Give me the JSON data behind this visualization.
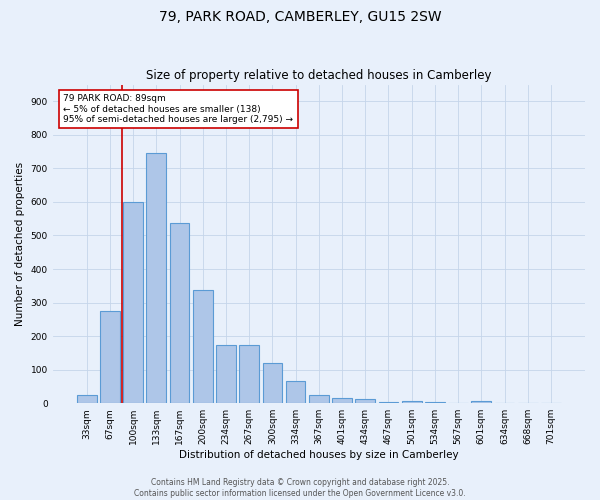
{
  "title": "79, PARK ROAD, CAMBERLEY, GU15 2SW",
  "subtitle": "Size of property relative to detached houses in Camberley",
  "xlabel": "Distribution of detached houses by size in Camberley",
  "ylabel": "Number of detached properties",
  "categories": [
    "33sqm",
    "67sqm",
    "100sqm",
    "133sqm",
    "167sqm",
    "200sqm",
    "234sqm",
    "267sqm",
    "300sqm",
    "334sqm",
    "367sqm",
    "401sqm",
    "434sqm",
    "467sqm",
    "501sqm",
    "534sqm",
    "567sqm",
    "601sqm",
    "634sqm",
    "668sqm",
    "701sqm"
  ],
  "values": [
    25,
    275,
    600,
    745,
    538,
    338,
    175,
    175,
    120,
    65,
    25,
    15,
    12,
    5,
    8,
    5,
    0,
    8,
    0,
    0,
    0
  ],
  "bar_color": "#aec6e8",
  "bar_edge_color": "#5b9bd5",
  "bar_edge_width": 0.8,
  "vline_color": "#cc0000",
  "annotation_text": "79 PARK ROAD: 89sqm\n← 5% of detached houses are smaller (138)\n95% of semi-detached houses are larger (2,795) →",
  "annotation_box_color": "#cc0000",
  "ylim": [
    0,
    950
  ],
  "yticks": [
    0,
    100,
    200,
    300,
    400,
    500,
    600,
    700,
    800,
    900
  ],
  "bg_color": "#e8f0fb",
  "plot_bg_color": "#e8f0fb",
  "grid_color": "#c5d5ea",
  "footer1": "Contains HM Land Registry data © Crown copyright and database right 2025.",
  "footer2": "Contains public sector information licensed under the Open Government Licence v3.0.",
  "title_fontsize": 10,
  "subtitle_fontsize": 8.5,
  "xlabel_fontsize": 7.5,
  "ylabel_fontsize": 7.5,
  "tick_fontsize": 6.5,
  "footer_fontsize": 5.5,
  "annotation_fontsize": 6.5,
  "vline_pos": 1.5
}
